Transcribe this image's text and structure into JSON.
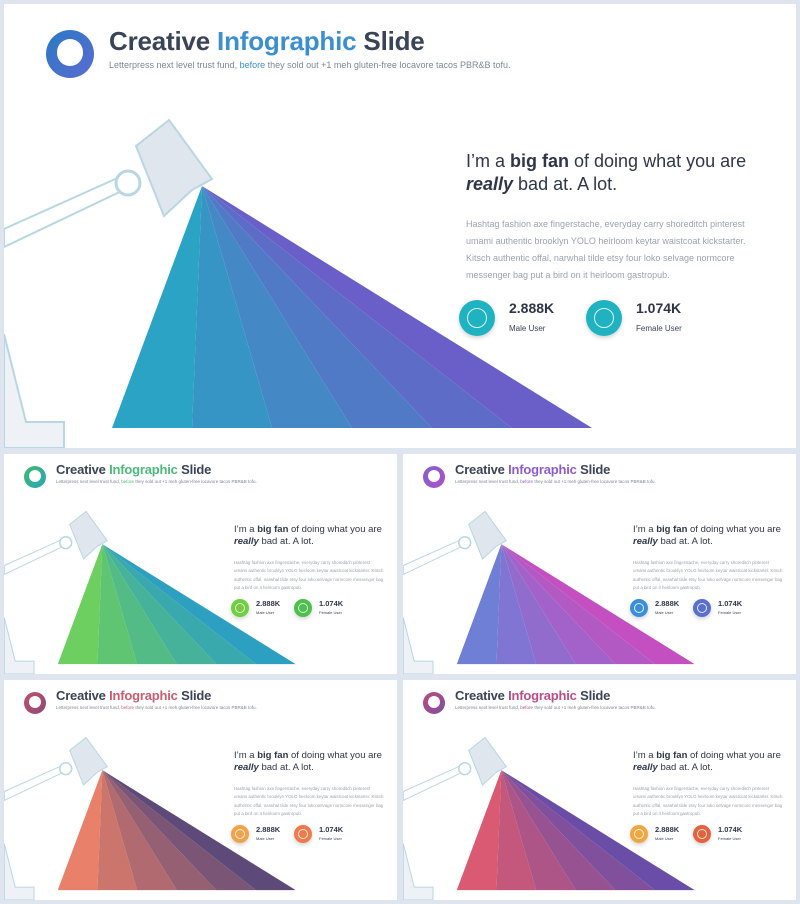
{
  "slides": [
    {
      "title_a": "Creative ",
      "title_b": "Infographic",
      "title_c": " Slide",
      "subtitle_a": "Letterpress next level trust fund, ",
      "subtitle_b": "before",
      "subtitle_c": " they sold out +1 meh gluten-free locavore tacos PBR&B tofu.",
      "heading_a": "I’m a ",
      "heading_b": "big fan",
      "heading_c": " of doing what you are",
      "heading_d": "really",
      "heading_e": " bad at. A lot.",
      "body": "Hashtag fashion axe fingerstache, everyday carry shoreditch pinterest umami authentic brooklyn YOLO heirloom keytar waistcoat kickstarter. Kitsch authentic offal, narwhal tilde etsy four loko selvage normcore messenger bag put a bird on it heirloom gastropub.",
      "stat1_value": "2.888K",
      "stat1_label": "Male User",
      "stat2_value": "1.074K",
      "stat2_label": "Female User"
    },
    {
      "title_a": "Creative ",
      "title_b": "Infographic",
      "title_c": " Slide",
      "subtitle_a": "Letterpress next level trust fund, ",
      "subtitle_b": "before",
      "subtitle_c": " they sold out +1 meh gluten-free locavore tacos PBR&B tofu.",
      "heading_a": "I’m a ",
      "heading_b": "big fan",
      "heading_c": " of doing what you are",
      "heading_d": "really",
      "heading_e": " bad at. A lot.",
      "body": "Hashtag fashion axe fingerstache, everyday carry shoreditch pinterest umami authentic brooklyn YOLO heirloom keytar waistcoat kickstarter. Kitsch authentic offal, narwhal tilde etsy four loko selvage normcore messenger bag put a bird on it heirloom gastropub.",
      "stat1_value": "2.888K",
      "stat1_label": "Male User",
      "stat2_value": "1.074K",
      "stat2_label": "Female User"
    },
    {
      "title_a": "Creative ",
      "title_b": "Infographic",
      "title_c": " Slide",
      "subtitle_a": "Letterpress next level trust fund, ",
      "subtitle_b": "before",
      "subtitle_c": " they sold out +1 meh gluten-free locavore tacos PBR&B tofu.",
      "heading_a": "I’m a ",
      "heading_b": "big fan",
      "heading_c": " of doing what you are",
      "heading_d": "really",
      "heading_e": " bad at. A lot.",
      "body": "Hashtag fashion axe fingerstache, everyday carry shoreditch pinterest umami authentic brooklyn YOLO heirloom keytar waistcoat kickstarter. Kitsch authentic offal, narwhal tilde etsy four loko selvage normcore messenger bag put a bird on it heirloom gastropub.",
      "stat1_value": "2.888K",
      "stat1_label": "Male User",
      "stat2_value": "1.074K",
      "stat2_label": "Female User"
    },
    {
      "title_a": "Creative ",
      "title_b": "Infographic",
      "title_c": " Slide",
      "subtitle_a": "Letterpress next level trust fund, ",
      "subtitle_b": "before",
      "subtitle_c": " they sold out +1 meh gluten-free locavore tacos PBR&B tofu.",
      "heading_a": "I’m a ",
      "heading_b": "big fan",
      "heading_c": " of doing what you are",
      "heading_d": "really",
      "heading_e": " bad at. A lot.",
      "body": "Hashtag fashion axe fingerstache, everyday carry shoreditch pinterest umami authentic brooklyn YOLO heirloom keytar waistcoat kickstarter. Kitsch authentic offal, narwhal tilde etsy four loko selvage normcore messenger bag put a bird on it heirloom gastropub.",
      "stat1_value": "2.888K",
      "stat1_label": "Male User",
      "stat2_value": "1.074K",
      "stat2_label": "Female User"
    },
    {
      "title_a": "Creative ",
      "title_b": "Infographic",
      "title_c": " Slide",
      "subtitle_a": "Letterpress next level trust fund, ",
      "subtitle_b": "before",
      "subtitle_c": " they sold out +1 meh gluten-free locavore tacos PBR&B tofu.",
      "heading_a": "I’m a ",
      "heading_b": "big fan",
      "heading_c": " of doing what you are",
      "heading_d": "really",
      "heading_e": " bad at. A lot.",
      "body": "Hashtag fashion axe fingerstache, everyday carry shoreditch pinterest umami authentic brooklyn YOLO heirloom keytar waistcoat kickstarter. Kitsch authentic offal, narwhal tilde etsy four loko selvage normcore messenger bag put a bird on it heirloom gastropub.",
      "stat1_value": "2.888K",
      "stat1_label": "Male User",
      "stat2_value": "1.074K",
      "stat2_label": "Female User"
    }
  ],
  "themes": [
    {
      "accent": "#3b8fd0",
      "ring_from": "#2a79c4",
      "ring_to": "#5b6bd0",
      "beam_from": "#2aa3c4",
      "beam_to": "#6a5fc8",
      "icon1": "#1fb3c2",
      "icon2": "#1fb3c2"
    },
    {
      "accent": "#4cb87a",
      "ring_from": "#3dbb6e",
      "ring_to": "#2aa6b8",
      "beam_from": "#6ccf5f",
      "beam_to": "#2d9fc1",
      "icon1": "#6fcf3f",
      "icon2": "#4cc04c"
    },
    {
      "accent": "#8e5cc9",
      "ring_from": "#7d63d0",
      "ring_to": "#b04fc8",
      "beam_from": "#6f7fd6",
      "beam_to": "#c44fc0",
      "icon1": "#3a8fdc",
      "icon2": "#5a70d0"
    },
    {
      "accent": "#c95b6e",
      "ring_from": "#c0506a",
      "ring_to": "#8a4a7a",
      "beam_from": "#e8806a",
      "beam_to": "#5e4a78",
      "icon1": "#f2a24a",
      "icon2": "#ef7a4a"
    },
    {
      "accent": "#b84e86",
      "ring_from": "#c04a7a",
      "ring_to": "#7b4fa0",
      "beam_from": "#d95a72",
      "beam_to": "#6a4da6",
      "icon1": "#f1a640",
      "icon2": "#e4623e"
    }
  ]
}
